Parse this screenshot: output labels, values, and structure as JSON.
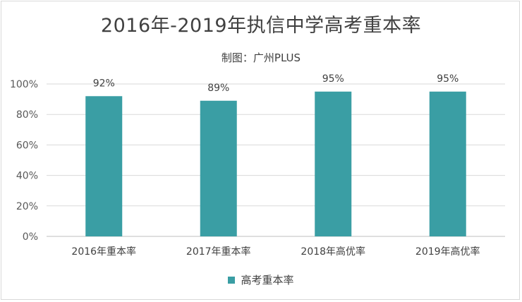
{
  "chart_data": {
    "type": "bar",
    "title": "2016年-2019年执信中学高考重本率",
    "subtitle": "制图：广州PLUS",
    "categories": [
      "2016年重本率",
      "2017年重本率",
      "2018年高优率",
      "2019年高优率"
    ],
    "series": [
      {
        "name": "高考重本率",
        "values": [
          92,
          89,
          95,
          95
        ],
        "color": "#3a9ea4"
      }
    ],
    "data_labels": [
      "92%",
      "89%",
      "95%",
      "95%"
    ],
    "ylim": [
      0,
      100
    ],
    "yticks": [
      0,
      20,
      40,
      60,
      80,
      100
    ],
    "ytick_labels": [
      "0%",
      "20%",
      "40%",
      "60%",
      "80%",
      "100%"
    ],
    "grid": true,
    "legend_position": "bottom"
  }
}
